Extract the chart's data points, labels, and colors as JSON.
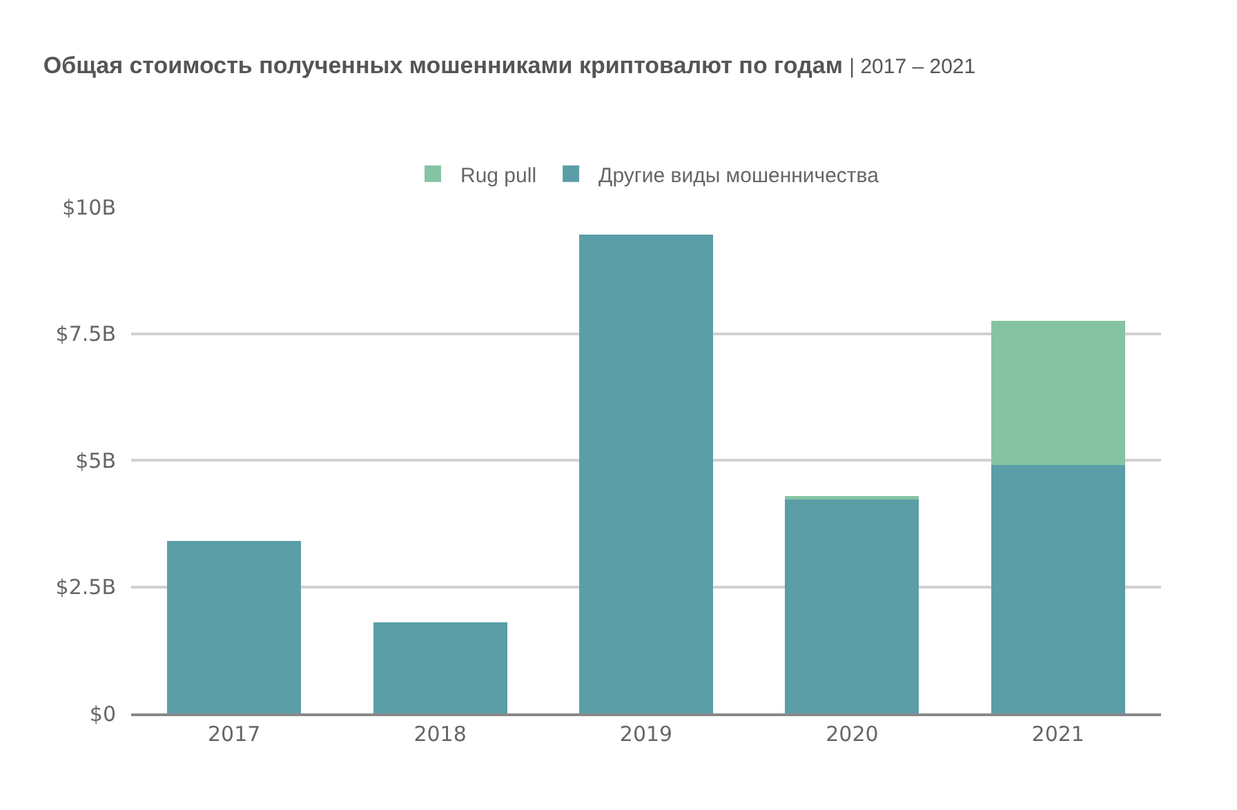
{
  "chart_data": {
    "type": "bar",
    "title": "Общая стоимость полученных мошенниками криптовалют по годам",
    "subtitle": "| 2017 – 2021",
    "categories": [
      "2017",
      "2018",
      "2019",
      "2020",
      "2021"
    ],
    "series": [
      {
        "name": "Другие виды мошенничества",
        "color": "#5b9ea8",
        "values": [
          3.4,
          1.8,
          9.45,
          4.25,
          4.9
        ]
      },
      {
        "name": "Rug pull",
        "color": "#86c3a3",
        "values": [
          0,
          0,
          0,
          0.04,
          2.85
        ]
      }
    ],
    "stacked": true,
    "ylim": [
      0,
      10
    ],
    "yticks": [
      {
        "value": 0,
        "label": "$0"
      },
      {
        "value": 2.5,
        "label": "$2.5B"
      },
      {
        "value": 5,
        "label": "$5B"
      },
      {
        "value": 7.5,
        "label": "$7.5B"
      },
      {
        "value": 10,
        "label": "$10B"
      }
    ],
    "grid": "y",
    "legend": "top"
  }
}
